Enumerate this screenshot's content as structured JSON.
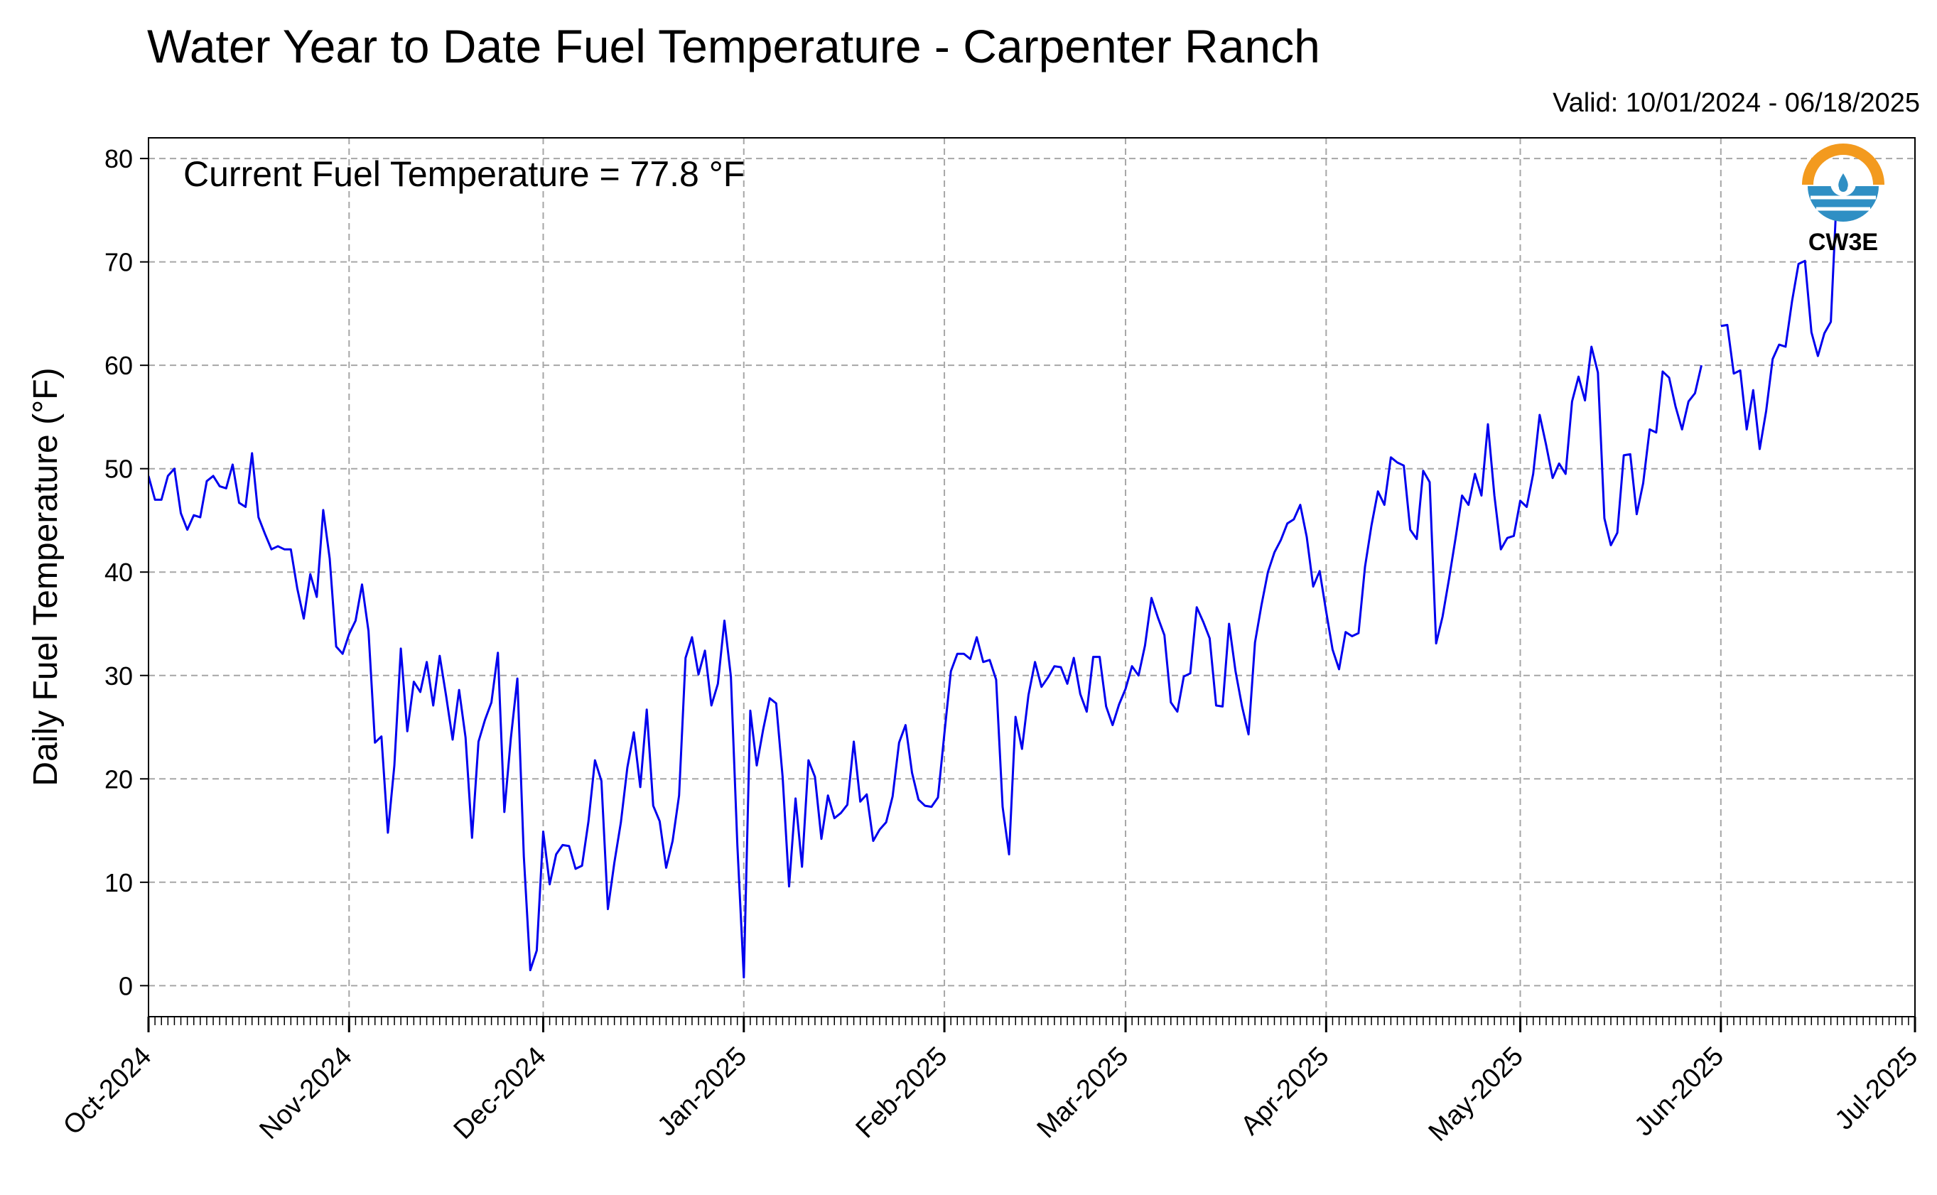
{
  "title": "Water Year to Date Fuel Temperature - Carpenter Ranch",
  "valid": "Valid: 10/01/2024 - 06/18/2025",
  "annotation": "Current Fuel Temperature = 77.8 °F",
  "logo": {
    "text": "CW3E",
    "icon": "cw3e-logo-icon"
  },
  "chart_data": {
    "type": "line",
    "title": "Water Year to Date Fuel Temperature - Carpenter Ranch",
    "xlabel": "",
    "ylabel": "Daily Fuel Temperature (°F)",
    "xlim": [
      "2024-10-01",
      "2025-07-01"
    ],
    "ylim": [
      -3,
      82
    ],
    "yticks": [
      0,
      10,
      20,
      30,
      40,
      50,
      60,
      70,
      80
    ],
    "xticks": [
      {
        "date": "2024-10-01",
        "label": "Oct-2024"
      },
      {
        "date": "2024-11-01",
        "label": "Nov-2024"
      },
      {
        "date": "2024-12-01",
        "label": "Dec-2024"
      },
      {
        "date": "2025-01-01",
        "label": "Jan-2025"
      },
      {
        "date": "2025-02-01",
        "label": "Feb-2025"
      },
      {
        "date": "2025-03-01",
        "label": "Mar-2025"
      },
      {
        "date": "2025-04-01",
        "label": "Apr-2025"
      },
      {
        "date": "2025-05-01",
        "label": "May-2025"
      },
      {
        "date": "2025-06-01",
        "label": "Jun-2025"
      },
      {
        "date": "2025-07-01",
        "label": "Jul-2025"
      }
    ],
    "grid": true,
    "color": "#0000ee",
    "series": [
      {
        "segments": [
          {
            "start": "2024-10-01",
            "values": [
              49.3,
              47.0,
              47.0,
              49.3,
              50.0,
              45.7,
              44.1,
              45.5,
              45.3,
              48.8,
              49.3,
              48.3,
              48.1,
              50.4,
              46.7,
              46.3,
              51.5,
              45.3,
              43.7,
              42.2,
              42.5,
              42.2,
              42.2,
              38.4,
              35.5,
              39.8,
              37.6,
              46.0,
              41.3,
              32.8,
              32.1,
              34.0,
              35.3,
              38.8,
              34.3,
              23.5,
              24.1,
              14.8,
              21.3,
              32.6,
              24.6,
              29.4,
              28.4,
              31.3,
              27.1,
              31.9,
              28.0,
              23.8,
              28.6,
              24.0,
              14.3,
              23.6,
              25.7,
              27.4,
              32.2,
              16.8,
              23.9,
              29.7,
              12.5,
              1.5,
              3.4,
              14.9,
              9.8,
              12.7,
              13.6,
              13.5,
              11.3,
              11.6,
              15.9,
              21.8,
              19.8,
              7.4,
              11.9,
              15.8,
              21.1,
              24.5,
              19.2,
              26.7,
              17.4,
              15.9,
              11.4,
              14.0,
              18.4,
              31.7,
              33.7,
              30.1,
              32.4,
              27.1,
              29.2,
              35.3,
              29.9,
              13.6,
              0.8,
              26.6,
              21.3,
              24.8,
              27.8,
              27.3,
              20.2,
              9.6,
              18.1,
              11.5,
              21.8,
              20.2,
              14.2,
              18.4,
              16.2,
              16.7,
              17.5,
              23.6,
              17.8,
              18.5,
              14.0,
              15.1,
              15.8,
              18.3,
              23.5,
              25.2,
              20.6,
              18.0,
              17.4,
              17.3,
              18.2,
              24.4,
              30.4,
              32.1,
              32.1,
              31.6,
              33.7,
              31.3,
              31.5,
              29.6,
              17.3,
              12.7,
              26.0,
              22.9,
              28.1,
              31.3,
              28.9,
              29.8,
              30.9,
              30.8,
              29.2,
              31.7,
              28.2,
              26.5,
              31.8,
              31.8,
              27.0,
              25.2,
              27.2,
              28.7,
              30.9,
              30.0,
              32.9,
              37.5,
              35.6,
              33.9,
              27.4,
              26.5,
              29.9,
              30.2,
              36.6,
              35.2,
              33.6,
              27.1,
              27.0,
              35.0,
              30.4,
              27.0,
              24.3,
              33.2,
              36.8,
              40.0,
              41.9,
              43.1,
              44.7,
              45.1,
              46.5,
              43.4,
              38.6,
              40.1,
              36.2,
              32.5,
              30.6,
              34.2,
              33.8,
              34.1,
              40.5,
              44.5,
              47.8,
              46.5,
              51.1,
              50.6,
              50.3,
              44.1,
              43.2,
              49.8,
              48.7,
              33.1,
              35.7,
              39.4,
              43.3,
              47.4,
              46.5,
              49.5,
              47.4,
              54.3,
              47.4,
              42.2,
              43.3,
              43.5,
              46.9,
              46.3,
              49.5,
              55.2,
              52.3,
              49.1,
              50.5,
              49.5,
              56.5,
              58.9,
              56.6,
              61.8,
              59.3,
              45.2,
              42.6,
              43.8,
              51.3,
              51.4,
              45.6,
              48.6,
              53.8,
              53.5,
              59.4,
              58.8,
              56.0,
              53.8,
              56.5,
              57.3,
              60.0
            ]
          },
          {
            "start": "2025-06-01",
            "values": [
              63.8,
              63.9,
              59.2,
              59.5,
              53.8,
              57.6,
              51.9,
              55.6,
              60.6,
              62.0,
              61.8,
              66.2,
              69.8,
              70.1,
              63.2,
              60.9,
              63.1,
              64.2,
              77.8
            ]
          }
        ]
      }
    ]
  }
}
